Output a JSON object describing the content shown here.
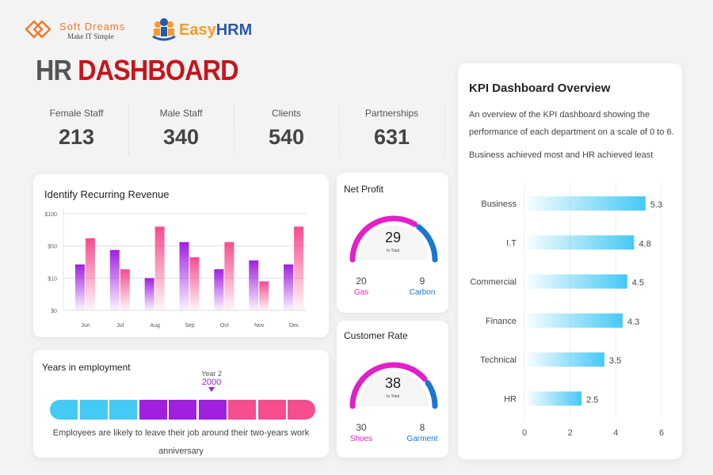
{
  "logos": {
    "softdreams": {
      "name": "Soft Dreams",
      "tagline": "Make IT Simple"
    },
    "easyhrm": {
      "name_part1": "Easy",
      "name_part2": "HRM"
    }
  },
  "header": {
    "title_part1": "HR",
    "title_part2": "DASHBOARD"
  },
  "stats": [
    {
      "label": "Female Staff",
      "value": "213"
    },
    {
      "label": "Male Staff",
      "value": "340"
    },
    {
      "label": "Clients",
      "value": "540"
    },
    {
      "label": "Partnerships",
      "value": "631"
    }
  ],
  "colors": {
    "purple": "#a020e0",
    "pink": "#f54d8d",
    "cyan": "#45c9f5",
    "magenta": "#e020c8",
    "blue": "#1a78d4",
    "red": "#c4161c"
  },
  "revenue": {
    "title": "Identify Recurring Revenue"
  },
  "net_profit": {
    "title": "Net Profit",
    "total": "29",
    "total_label": "In Total",
    "left_value": "20",
    "left_label": "Gas",
    "right_value": "9",
    "right_label": "Carbon"
  },
  "customer_rate": {
    "title": "Customer Rate",
    "total": "38",
    "total_label": "In Total",
    "left_value": "30",
    "left_label": "Shoes",
    "right_value": "8",
    "right_label": "Garment"
  },
  "employment": {
    "title": "Years in employment",
    "marker_label": "Year 2",
    "marker_value": "2000",
    "segments": [
      "cyan",
      "cyan",
      "cyan",
      "purple",
      "purple",
      "purple",
      "pink",
      "pink",
      "pink"
    ],
    "caption_line1": "Employees are likely to leave their job around their two-years work",
    "caption_line2": "anniversary"
  },
  "kpi": {
    "title": "KPI Dashboard Overview",
    "desc_line1": "An overview of the KPI dashboard showing the",
    "desc_line2": "performance of each department on a scale of 0 to 6.",
    "desc_line3": "Business achieved most and HR achieved least"
  },
  "chart_data": [
    {
      "type": "bar",
      "title": "Identify Recurring Revenue",
      "categories": [
        "Jun",
        "Jul",
        "Aug",
        "Sep",
        "Oct",
        "Nov",
        "Dec"
      ],
      "y_ticks": [
        "$0",
        "$10",
        "$50",
        "$100"
      ],
      "y_tick_values": [
        0,
        10,
        50,
        100
      ],
      "series": [
        {
          "color": "#a020e0",
          "values": [
            27,
            45,
            10,
            56,
            21,
            32,
            27
          ]
        },
        {
          "color": "#f54d8d",
          "values": [
            62,
            21,
            80,
            36,
            56,
            9,
            80
          ]
        }
      ],
      "grid": true
    },
    {
      "type": "bar",
      "orientation": "horizontal",
      "categories": [
        "Business",
        "I.T",
        "Commercial",
        "Finance",
        "Technical",
        "HR"
      ],
      "values": [
        5.3,
        4.8,
        4.5,
        4.3,
        3.5,
        2.5
      ],
      "value_labels": [
        "5.3",
        "4.8",
        "4.5",
        "4.3",
        "3.5",
        "2.5"
      ],
      "x_ticks": [
        "0",
        "2",
        "4",
        "6"
      ],
      "xlim": [
        0,
        6
      ],
      "grid": true
    }
  ]
}
